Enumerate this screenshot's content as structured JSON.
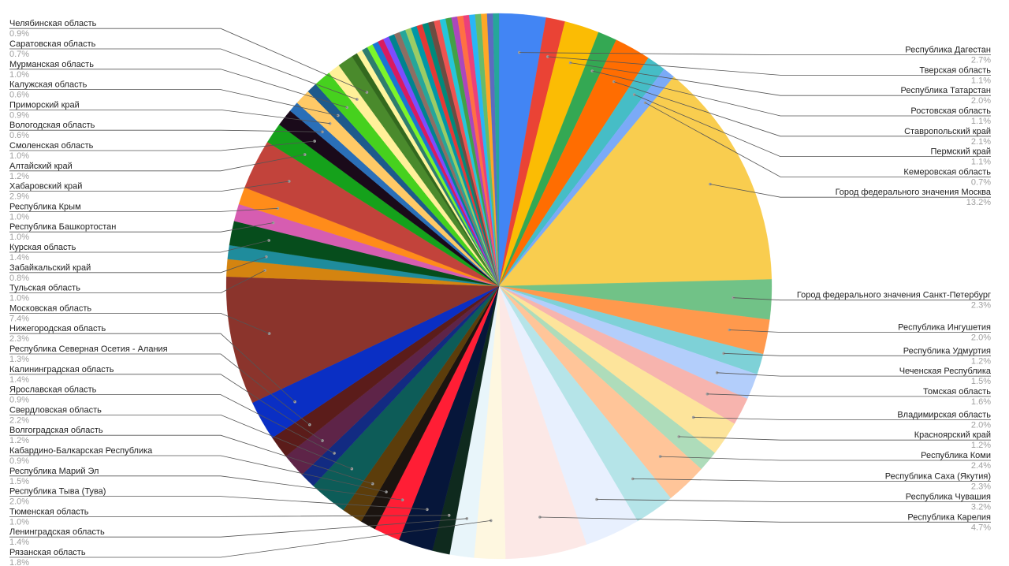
{
  "chart_data": {
    "type": "pie",
    "title": "",
    "other_color": "#e9e9e9",
    "slices": [
      {
        "name": "Республика Дагестан",
        "value": 2.7,
        "label": "2.7%",
        "color": "#4285f4"
      },
      {
        "name": "Тверская область",
        "value": 1.1,
        "label": "1.1%",
        "color": "#ea4335"
      },
      {
        "name": "Республика Татарстан",
        "value": 2.0,
        "label": "2.0%",
        "color": "#fbbc04"
      },
      {
        "name": "Ростовская область",
        "value": 1.1,
        "label": "1.1%",
        "color": "#34a853"
      },
      {
        "name": "Ставропольский край",
        "value": 2.1,
        "label": "2.1%",
        "color": "#ff6d01"
      },
      {
        "name": "Пермский край",
        "value": 1.1,
        "label": "1.1%",
        "color": "#46bdc6"
      },
      {
        "name": "Кемеровская область",
        "value": 0.7,
        "label": "0.7%",
        "color": "#7baaf7"
      },
      {
        "name": "Город федерального значения Москва",
        "value": 13.2,
        "label": "13.2%",
        "color": "#f9cd4f"
      },
      {
        "name": "Город федерального значения Санкт-Петербург",
        "value": 2.3,
        "label": "2.3%",
        "color": "#71c287"
      },
      {
        "name": "Республика Ингушетия",
        "value": 2.0,
        "label": "2.0%",
        "color": "#ff994d"
      },
      {
        "name": "Республика Удмуртия",
        "value": 1.2,
        "label": "1.2%",
        "color": "#7ed1d7"
      },
      {
        "name": "Чеченская Республика",
        "value": 1.5,
        "label": "1.5%",
        "color": "#b3cefb"
      },
      {
        "name": "Томская область",
        "value": 1.6,
        "label": "1.6%",
        "color": "#f7b4ae"
      },
      {
        "name": "Владимирская область",
        "value": 2.0,
        "label": "2.0%",
        "color": "#fde49b"
      },
      {
        "name": "Красноярский край",
        "value": 1.2,
        "label": "1.2%",
        "color": "#aedcba"
      },
      {
        "name": "Республика Коми",
        "value": 2.4,
        "label": "2.4%",
        "color": "#ffc599"
      },
      {
        "name": "Республика Саха (Якутия)",
        "value": 2.3,
        "label": "2.3%",
        "color": "#b5e4e8"
      },
      {
        "name": "Республика Чувашия",
        "value": 3.2,
        "label": "3.2%",
        "color": "#e8f0fe"
      },
      {
        "name": "Республика Карелия",
        "value": 4.7,
        "label": "4.7%",
        "color": "#fce8e6"
      },
      {
        "name": "Рязанская область",
        "value": 1.8,
        "label": "1.8%",
        "color": "#fef7e0"
      },
      {
        "name": "Ленинградская область",
        "value": 1.4,
        "label": "1.4%",
        "color": "#e8f5fa"
      },
      {
        "name": "Тюменская область",
        "value": 1.0,
        "label": "1.0%",
        "color": "#0f2a1e"
      },
      {
        "name": "Республика Тыва (Тува)",
        "value": 2.0,
        "label": "2.0%",
        "color": "#06163a"
      },
      {
        "name": "Республика Марий Эл",
        "value": 1.5,
        "label": "1.5%",
        "color": "#ff1e35"
      },
      {
        "name": "Кабардино-Балкарская Республика",
        "value": 0.9,
        "label": "0.9%",
        "color": "#1b1410"
      },
      {
        "name": "Волгоградская область",
        "value": 1.2,
        "label": "1.2%",
        "color": "#5c3d0b"
      },
      {
        "name": "Свердловская область",
        "value": 2.2,
        "label": "2.2%",
        "color": "#0d5c58"
      },
      {
        "name": "Ярославская область",
        "value": 0.9,
        "label": "0.9%",
        "color": "#122b82"
      },
      {
        "name": "Калининградская область",
        "value": 1.4,
        "label": "1.4%",
        "color": "#5e2448"
      },
      {
        "name": "Республика Северная Осетия - Алания",
        "value": 1.3,
        "label": "1.3%",
        "color": "#5b1c1a"
      },
      {
        "name": "Нижегородская область",
        "value": 2.3,
        "label": "2.3%",
        "color": "#0a2fc4"
      },
      {
        "name": "Московская область",
        "value": 7.4,
        "label": "7.4%",
        "color": "#8b342c"
      },
      {
        "name": "Тульская область",
        "value": 1.0,
        "label": "1.0%",
        "color": "#d48410"
      },
      {
        "name": "Забайкальский край",
        "value": 0.8,
        "label": "0.8%",
        "color": "#1f8c9c"
      },
      {
        "name": "Курская область",
        "value": 1.4,
        "label": "1.4%",
        "color": "#064d1c"
      },
      {
        "name": "Республика Башкортостан",
        "value": 1.0,
        "label": "1.0%",
        "color": "#d65db1"
      },
      {
        "name": "Республика Крым",
        "value": 1.0,
        "label": "1.0%",
        "color": "#ff8c1a"
      },
      {
        "name": "Хабаровский край",
        "value": 2.9,
        "label": "2.9%",
        "color": "#c2433b"
      },
      {
        "name": "Алтайский край",
        "value": 1.2,
        "label": "1.2%",
        "color": "#15a11b"
      },
      {
        "name": "Смоленская область",
        "value": 1.0,
        "label": "1.0%",
        "color": "#1a0a1a"
      },
      {
        "name": "Вологодская область",
        "value": 0.6,
        "label": "0.6%",
        "color": "#2a6fb8"
      },
      {
        "name": "Приморский край",
        "value": 0.9,
        "label": "0.9%",
        "color": "#ffc966"
      },
      {
        "name": "Калужская область",
        "value": 0.6,
        "label": "0.6%",
        "color": "#1e5a8c"
      },
      {
        "name": "Мурманская область",
        "value": 1.0,
        "label": "1.0%",
        "color": "#46d11e"
      },
      {
        "name": "Саратовская область",
        "value": 0.7,
        "label": "0.7%",
        "color": "#fff099"
      },
      {
        "name": "Челябинская область",
        "value": 0.9,
        "label": "0.9%",
        "color": "#4a8a2c"
      }
    ],
    "minor_slices": [
      "#33691e",
      "#fff59d",
      "#2e7d6e",
      "#7cf52a",
      "#1976d2",
      "#d81b60",
      "#7c4dff",
      "#00838f",
      "#8d6e63",
      "#26a69a",
      "#9ccc65",
      "#0097a7",
      "#e53935",
      "#00897b",
      "#6d4c41",
      "#ef5350",
      "#26c6da",
      "#43a047",
      "#ab47bc",
      "#ff7043",
      "#ec407a",
      "#29b6f6",
      "#66bb6a",
      "#ffa726",
      "#5c6bc0",
      "#26a69a"
    ],
    "minor_value_each": 0.34
  }
}
